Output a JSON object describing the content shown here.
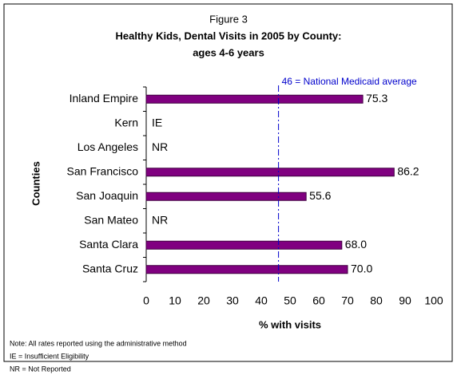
{
  "chart_data": {
    "type": "bar",
    "orientation": "horizontal",
    "figure_label": "Figure 3",
    "title": "Healthy Kids, Dental Visits in 2005 by County:",
    "subtitle": "ages 4-6 years",
    "ylabel": "Counties",
    "xlabel": "% with visits",
    "categories": [
      "Inland Empire",
      "Kern",
      "Los Angeles",
      "San Francisco",
      "San Joaquin",
      "San Mateo",
      "Santa Clara",
      "Santa Cruz"
    ],
    "values": [
      75.3,
      null,
      null,
      86.2,
      55.6,
      null,
      68.0,
      70.0
    ],
    "value_labels": [
      "75.3",
      "IE",
      "NR",
      "86.2",
      "55.6",
      "NR",
      "68.0",
      "70.0"
    ],
    "color": "#800080",
    "xlim": [
      0,
      100
    ],
    "xticks": [
      0,
      10,
      20,
      30,
      40,
      50,
      60,
      70,
      80,
      90,
      100
    ],
    "reference_line": {
      "value": 46,
      "label": "46 = National Medicaid average",
      "color": "#0000cc"
    },
    "notes": [
      "Note: All rates reported using the administrative method",
      "IE = Insufficient Eligibility",
      "NR = Not Reported"
    ]
  }
}
